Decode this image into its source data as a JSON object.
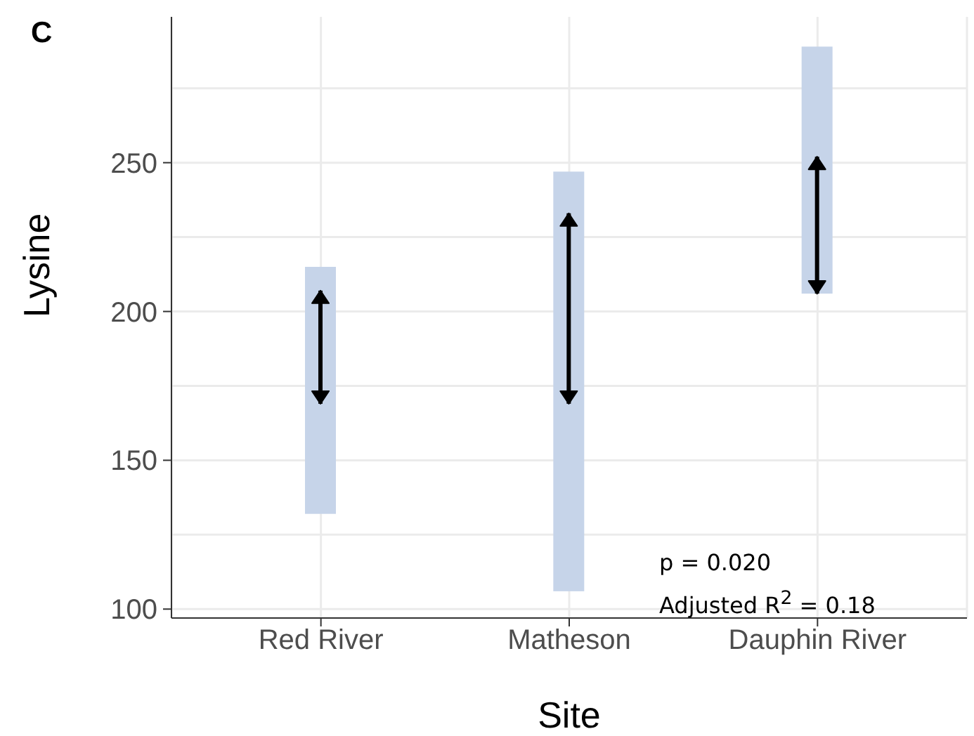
{
  "chart_data": {
    "type": "bar",
    "title": "C",
    "xlabel": "Site",
    "ylabel": "Lysine",
    "categories": [
      "Red River",
      "Matheson",
      "Dauphin River"
    ],
    "series": [
      {
        "type": "bar",
        "color": "#c6d4e9",
        "base": [
          132,
          106,
          206
        ],
        "values": [
          83,
          141,
          83
        ]
      },
      {
        "type": "bar",
        "marker": "triangle",
        "color": "#000000",
        "base": [
          169,
          169,
          206
        ],
        "values": [
          38,
          64,
          46
        ]
      }
    ],
    "ylim": [
      97,
      299
    ],
    "yticks": [
      100,
      {
        "value": 125,
        "label": null
      },
      150,
      {
        "value": 175,
        "label": null
      },
      200,
      {
        "value": 225,
        "label": null
      },
      250,
      {
        "value": 275,
        "label": null
      }
    ],
    "grid": true,
    "annotations": [
      "p = 0.020",
      "Adjusted R$^{2}$ = 0.18"
    ]
  }
}
